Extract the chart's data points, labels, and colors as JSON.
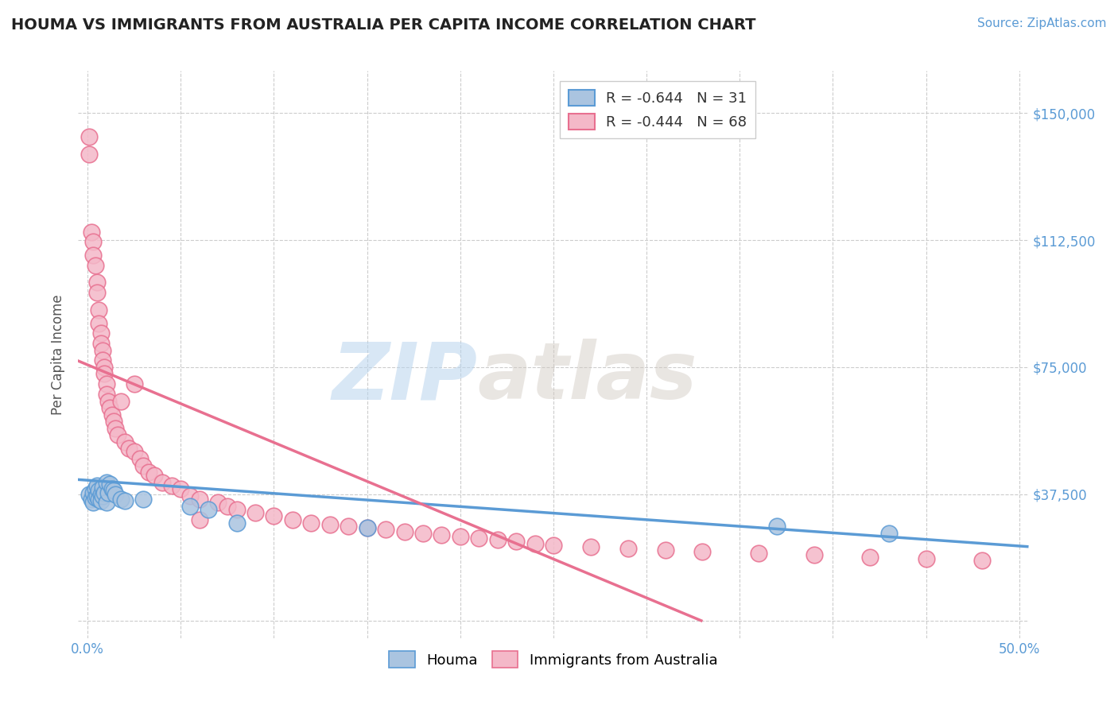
{
  "title": "HOUMA VS IMMIGRANTS FROM AUSTRALIA PER CAPITA INCOME CORRELATION CHART",
  "source": "Source: ZipAtlas.com",
  "ylabel": "Per Capita Income",
  "xlim": [
    -0.005,
    0.505
  ],
  "ylim": [
    -5000,
    162500
  ],
  "yticks": [
    0,
    37500,
    75000,
    112500,
    150000
  ],
  "ytick_labels": [
    "",
    "$37,500",
    "$75,000",
    "$112,500",
    "$150,000"
  ],
  "xticks": [
    0.0,
    0.05,
    0.1,
    0.15,
    0.2,
    0.25,
    0.3,
    0.35,
    0.4,
    0.45,
    0.5
  ],
  "xtick_labels_show": [
    "0.0%",
    "",
    "",
    "",
    "",
    "",
    "",
    "",
    "",
    "",
    "50.0%"
  ],
  "background_color": "#ffffff",
  "grid_color": "#cccccc",
  "houma_color": "#aac4e0",
  "houma_edge_color": "#5b9bd5",
  "australia_color": "#f4b8c8",
  "australia_edge_color": "#e87090",
  "legend_R_houma": "R = -0.644",
  "legend_N_houma": "N = 31",
  "legend_R_australia": "R = -0.444",
  "legend_N_australia": "N = 68",
  "watermark_zip": "ZIP",
  "watermark_atlas": "atlas",
  "houma_scatter_x": [
    0.001,
    0.002,
    0.003,
    0.003,
    0.004,
    0.004,
    0.005,
    0.005,
    0.006,
    0.006,
    0.007,
    0.007,
    0.008,
    0.008,
    0.009,
    0.01,
    0.01,
    0.011,
    0.012,
    0.013,
    0.014,
    0.015,
    0.018,
    0.02,
    0.03,
    0.055,
    0.065,
    0.08,
    0.15,
    0.37,
    0.43
  ],
  "houma_scatter_y": [
    37500,
    36000,
    38000,
    35000,
    39000,
    36500,
    40000,
    37000,
    38500,
    36000,
    37500,
    35500,
    39500,
    37000,
    38000,
    41000,
    35000,
    38000,
    40500,
    39000,
    38500,
    37500,
    36000,
    35500,
    36000,
    34000,
    33000,
    29000,
    27500,
    28000,
    26000
  ],
  "australia_scatter_x": [
    0.001,
    0.001,
    0.002,
    0.003,
    0.003,
    0.004,
    0.005,
    0.005,
    0.006,
    0.006,
    0.007,
    0.007,
    0.008,
    0.008,
    0.009,
    0.009,
    0.01,
    0.01,
    0.011,
    0.012,
    0.013,
    0.014,
    0.015,
    0.016,
    0.018,
    0.02,
    0.022,
    0.025,
    0.028,
    0.03,
    0.033,
    0.036,
    0.04,
    0.045,
    0.05,
    0.055,
    0.06,
    0.07,
    0.075,
    0.08,
    0.09,
    0.1,
    0.11,
    0.12,
    0.13,
    0.14,
    0.15,
    0.16,
    0.17,
    0.18,
    0.19,
    0.2,
    0.21,
    0.22,
    0.23,
    0.24,
    0.25,
    0.27,
    0.29,
    0.31,
    0.33,
    0.36,
    0.39,
    0.42,
    0.45,
    0.48,
    0.025,
    0.06
  ],
  "australia_scatter_y": [
    143000,
    138000,
    115000,
    112000,
    108000,
    105000,
    100000,
    97000,
    92000,
    88000,
    85000,
    82000,
    80000,
    77000,
    75000,
    73000,
    70000,
    67000,
    65000,
    63000,
    61000,
    59000,
    57000,
    55000,
    65000,
    53000,
    51000,
    50000,
    48000,
    46000,
    44000,
    43000,
    41000,
    40000,
    39000,
    37000,
    36000,
    35000,
    34000,
    33000,
    32000,
    31000,
    30000,
    29000,
    28500,
    28000,
    27500,
    27000,
    26500,
    26000,
    25500,
    25000,
    24500,
    24000,
    23500,
    23000,
    22500,
    22000,
    21500,
    21000,
    20500,
    20000,
    19500,
    19000,
    18500,
    18000,
    70000,
    30000
  ],
  "houma_line_x": [
    -0.01,
    0.505
  ],
  "houma_line_y": [
    42000,
    22000
  ],
  "australia_line_x": [
    -0.01,
    0.33
  ],
  "australia_line_y": [
    78000,
    0
  ],
  "title_color": "#222222",
  "tick_color": "#5b9bd5",
  "source_color": "#5b9bd5",
  "ylabel_color": "#555555"
}
